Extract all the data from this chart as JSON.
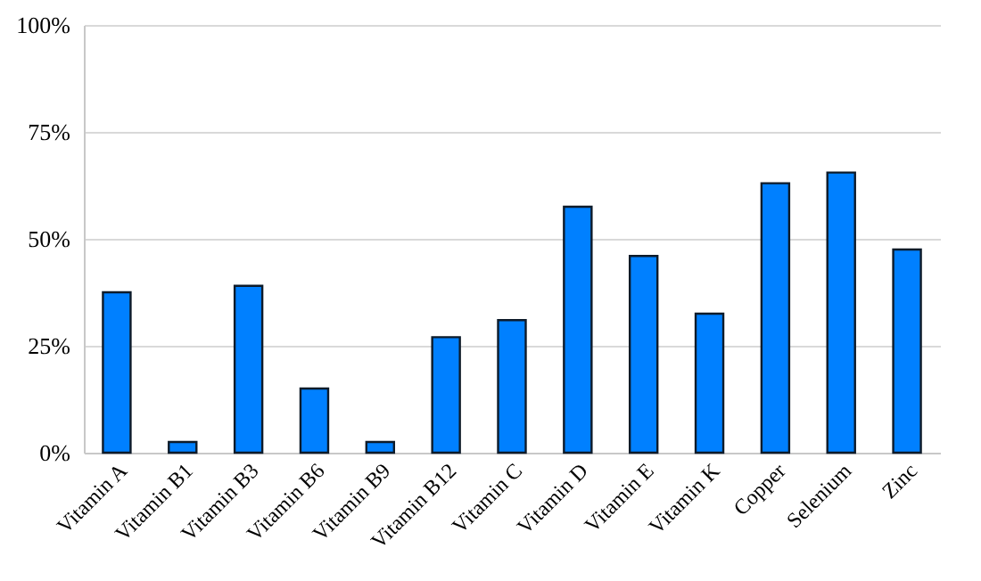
{
  "chart_data": {
    "type": "bar",
    "categories": [
      "Vitamin A",
      "Vitamin B1",
      "Vitamin B3",
      "Vitamin B6",
      "Vitamin B9",
      "Vitamin B12",
      "Vitamin C",
      "Vitamin D",
      "Vitamin E",
      "Vitamin K",
      "Copper",
      "Selenium",
      "Zinc"
    ],
    "values": [
      37.5,
      2.5,
      39,
      15,
      2.5,
      27,
      31,
      57.5,
      46,
      32.5,
      63,
      65.5,
      47.5
    ],
    "color": "#0080ff",
    "ylim": [
      0,
      100
    ],
    "yticks": [
      {
        "value": 0,
        "label": "0%"
      },
      {
        "value": 25,
        "label": "25%"
      },
      {
        "value": 50,
        "label": "50%"
      },
      {
        "value": 75,
        "label": "75%"
      },
      {
        "value": 100,
        "label": "100%"
      }
    ],
    "grid": "y"
  }
}
